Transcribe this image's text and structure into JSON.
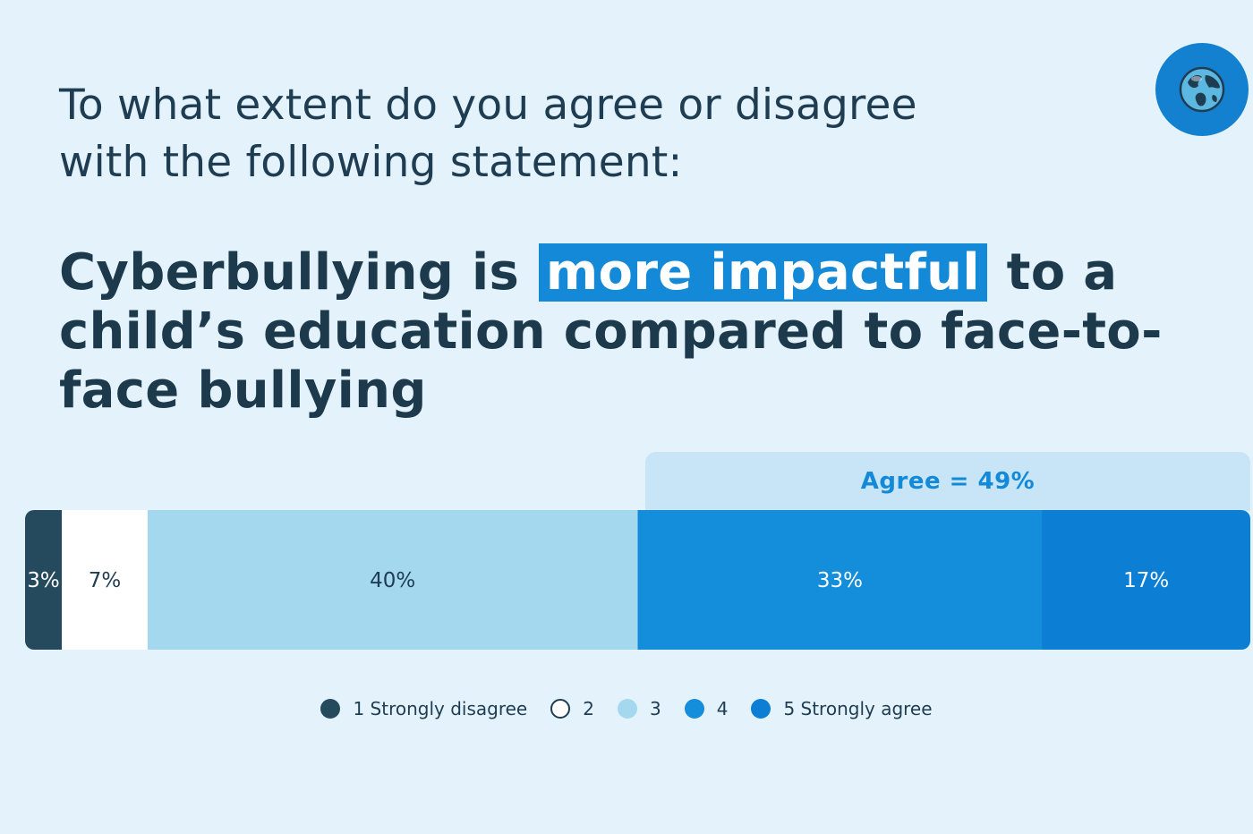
{
  "question": {
    "prefix": "To what extent do you ",
    "emphasis": "agree or disagree",
    "line2": "with the following statement:"
  },
  "statement": {
    "before": "Cyberbullying is",
    "highlight": "more impactful",
    "after": "to a child’s education compared to face-to-face bullying"
  },
  "logo": {
    "icon": "globe-icon",
    "background": "#1380d0"
  },
  "chart_data": {
    "type": "bar",
    "orientation": "horizontal-stacked-100",
    "categories": [
      "1 Strongly disagree",
      "2",
      "3",
      "4",
      "5 Strongly agree"
    ],
    "series": [
      {
        "name": "1 Strongly disagree",
        "value": 3,
        "label": "3%",
        "color": "#254a5e",
        "label_color": "#ffffff"
      },
      {
        "name": "2",
        "value": 7,
        "label": "7%",
        "color": "#ffffff",
        "label_color": "#1f3d52"
      },
      {
        "name": "3",
        "value": 40,
        "label": "40%",
        "color": "#a3d8ee",
        "label_color": "#1f3d52"
      },
      {
        "name": "4",
        "value": 33,
        "label": "33%",
        "color": "#148ddb",
        "label_color": "#ffffff"
      },
      {
        "name": "5 Strongly agree",
        "value": 17,
        "label": "17%",
        "color": "#0c7ed3",
        "label_color": "#ffffff"
      }
    ],
    "xlim": [
      0,
      100
    ],
    "annotation": {
      "text": "Agree = 49%",
      "color": "#1389d8"
    },
    "legend_position": "bottom-center"
  }
}
